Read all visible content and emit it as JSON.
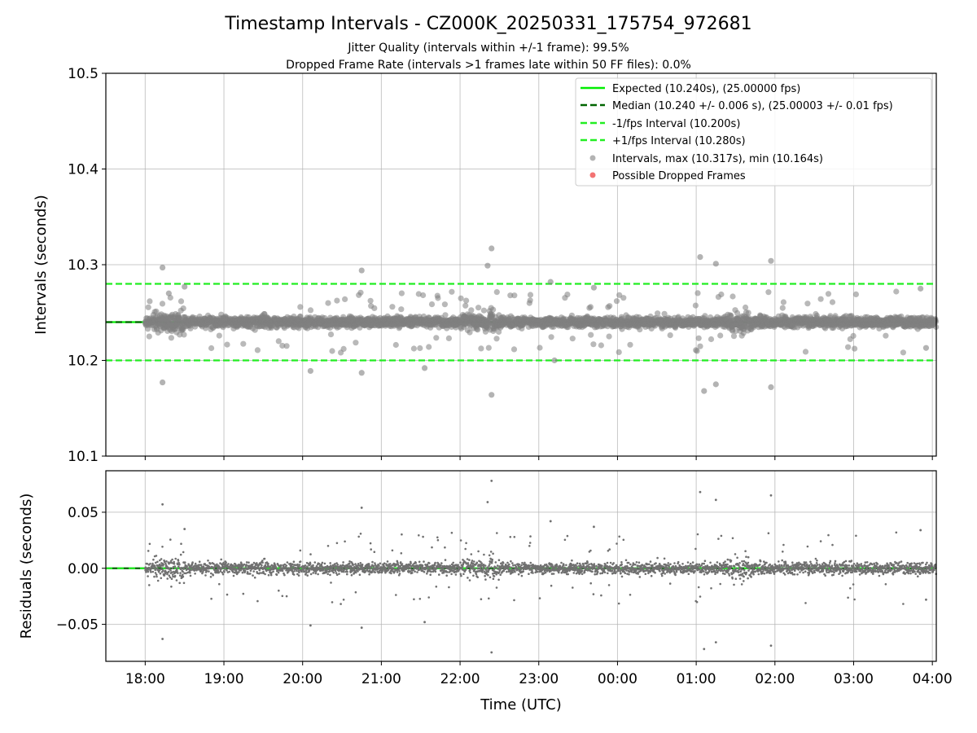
{
  "figure": {
    "title": "Timestamp Intervals - CZ000K_20250331_175754_972681",
    "subtitle_1": "Jitter Quality (intervals within +/-1 frame): 99.5%",
    "subtitle_2": "Dropped Frame Rate (intervals >1 frames late within 50 FF files): 0.0%"
  },
  "chart_data": [
    {
      "type": "scatter",
      "ylabel": "Intervals (seconds)",
      "ylim": [
        10.1,
        10.5
      ],
      "yticks": [
        10.1,
        10.2,
        10.3,
        10.4,
        10.5
      ],
      "ytick_labels": [
        "10.1",
        "10.2",
        "10.3",
        "10.4",
        "10.5"
      ],
      "grid": true,
      "legend_position": "top-right",
      "xlim_hours": [
        17.5,
        28.05
      ],
      "lines": [
        {
          "name": "Expected (10.240s), (25.00000 fps)",
          "y": 10.24,
          "style": "solid",
          "color": "#00ee00"
        },
        {
          "name": "Median (10.240 +/- 0.006 s), (25.00003 +/- 0.01 fps)",
          "y": 10.24,
          "style": "dashed",
          "color": "#006400"
        },
        {
          "name": "-1/fps Interval (10.200s)",
          "y": 10.2,
          "style": "dashed",
          "color": "#22ee22"
        },
        {
          "name": "+1/fps Interval (10.280s)",
          "y": 10.28,
          "style": "dashed",
          "color": "#22ee22"
        }
      ],
      "series": [
        {
          "name": "Intervals, max (10.317s), min (10.164s)",
          "color": "#808080"
        },
        {
          "name": "Possible Dropped Frames",
          "color": "#f05050"
        }
      ],
      "outliers": [
        [
          18.22,
          10.297
        ],
        [
          18.22,
          10.177
        ],
        [
          18.5,
          10.277
        ],
        [
          18.3,
          10.27
        ],
        [
          20.75,
          10.294
        ],
        [
          20.75,
          10.187
        ],
        [
          20.1,
          10.189
        ],
        [
          21.55,
          10.192
        ],
        [
          22.35,
          10.299
        ],
        [
          22.4,
          10.317
        ],
        [
          22.4,
          10.164
        ],
        [
          23.15,
          10.282
        ],
        [
          23.2,
          10.2
        ],
        [
          23.7,
          10.276
        ],
        [
          25.05,
          10.308
        ],
        [
          25.1,
          10.168
        ],
        [
          25.25,
          10.301
        ],
        [
          25.25,
          10.175
        ],
        [
          25.95,
          10.304
        ],
        [
          25.95,
          10.172
        ],
        [
          27.85,
          10.275
        ],
        [
          27.92,
          10.213
        ]
      ]
    },
    {
      "type": "scatter",
      "xlabel": "Time (UTC)",
      "ylabel": "Residuals (seconds)",
      "ylim": [
        -0.083,
        0.087
      ],
      "yticks": [
        -0.05,
        0.0,
        0.05
      ],
      "ytick_labels": [
        "−0.05",
        "0.00",
        "0.05"
      ],
      "xticks_hours": [
        18,
        19,
        20,
        21,
        22,
        23,
        24,
        25,
        26,
        27,
        28
      ],
      "xtick_labels": [
        "18:00",
        "19:00",
        "20:00",
        "21:00",
        "22:00",
        "23:00",
        "00:00",
        "01:00",
        "02:00",
        "03:00",
        "04:00"
      ],
      "grid": true,
      "zero_line_color": "#22ee22",
      "series": [
        {
          "name": "Residuals",
          "color": "#707070"
        }
      ],
      "outliers": [
        [
          18.22,
          0.057
        ],
        [
          18.22,
          -0.063
        ],
        [
          18.5,
          0.035
        ],
        [
          20.75,
          0.054
        ],
        [
          20.75,
          -0.053
        ],
        [
          20.1,
          -0.051
        ],
        [
          21.55,
          -0.048
        ],
        [
          22.35,
          0.059
        ],
        [
          22.4,
          0.078
        ],
        [
          22.4,
          -0.075
        ],
        [
          23.15,
          0.042
        ],
        [
          23.7,
          0.037
        ],
        [
          25.05,
          0.068
        ],
        [
          25.1,
          -0.072
        ],
        [
          25.25,
          0.061
        ],
        [
          25.25,
          -0.066
        ],
        [
          25.95,
          0.065
        ],
        [
          25.95,
          -0.069
        ],
        [
          27.85,
          0.034
        ],
        [
          27.92,
          -0.028
        ]
      ]
    }
  ]
}
